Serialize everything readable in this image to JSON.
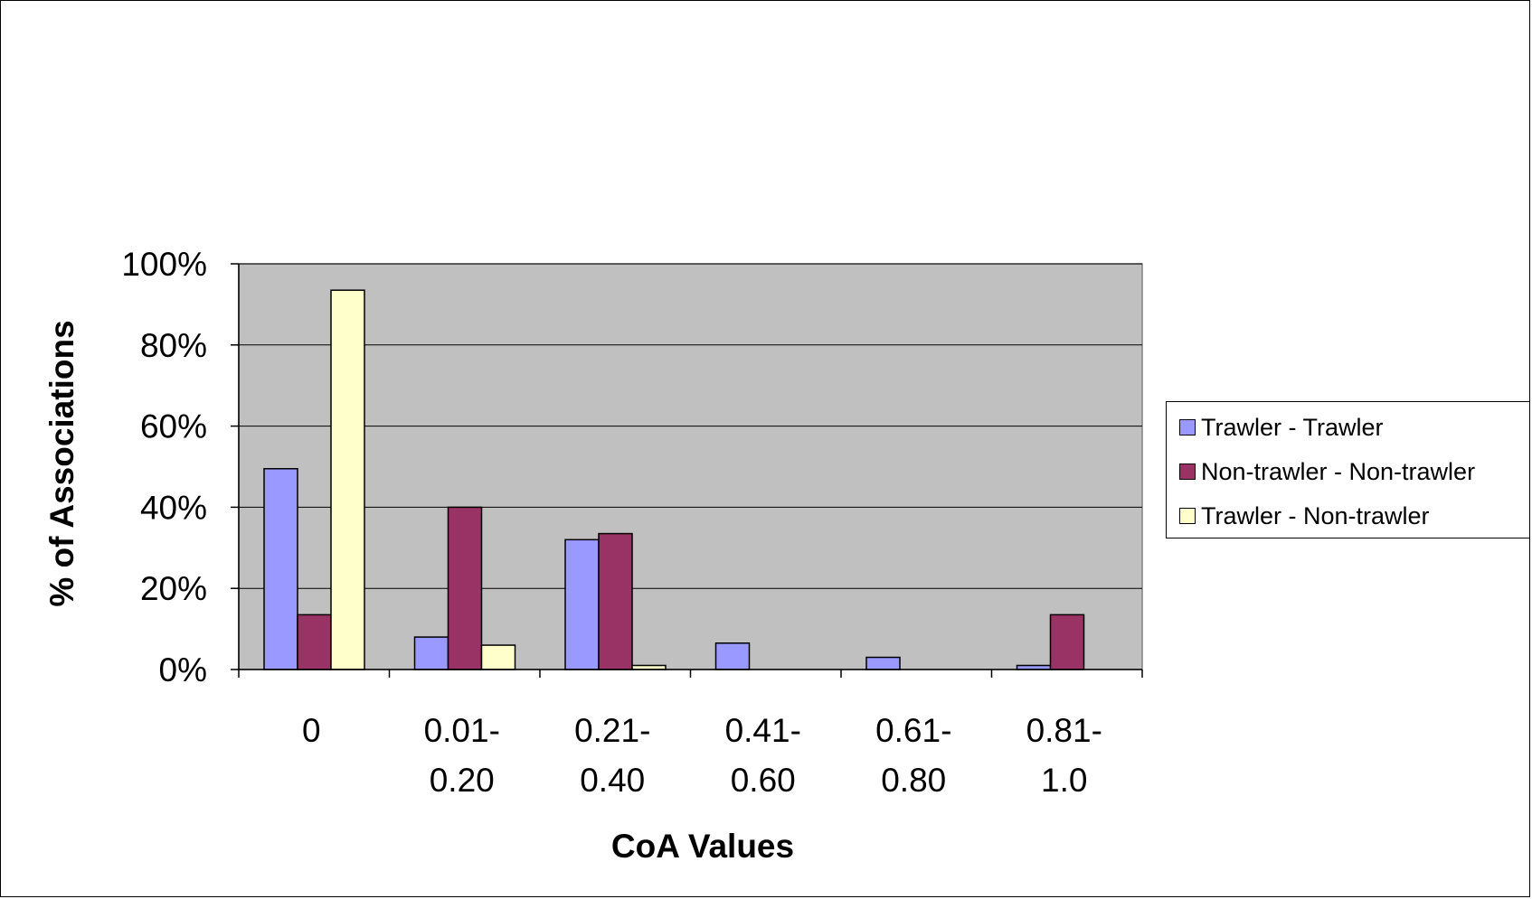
{
  "chart_data": {
    "type": "bar",
    "title": "",
    "xlabel": "CoA Values",
    "ylabel": "% of Associations",
    "ylim": [
      0,
      100
    ],
    "y_ticks": [
      "0%",
      "20%",
      "40%",
      "60%",
      "80%",
      "100%"
    ],
    "y_tick_values": [
      0,
      20,
      40,
      60,
      80,
      100
    ],
    "categories": [
      [
        "0"
      ],
      [
        "0.01-",
        "0.20"
      ],
      [
        "0.21-",
        "0.40"
      ],
      [
        "0.41-",
        "0.60"
      ],
      [
        "0.61-",
        "0.80"
      ],
      [
        "0.81-",
        "1.0"
      ]
    ],
    "series": [
      {
        "name": "Trawler - Trawler",
        "color": "#9999ff",
        "values": [
          49.5,
          8,
          32,
          6.5,
          3,
          1
        ]
      },
      {
        "name": "Non-trawler - Non-trawler",
        "color": "#993366",
        "values": [
          13.5,
          40,
          33.5,
          0,
          0,
          13.5
        ]
      },
      {
        "name": "Trawler - Non-trawler",
        "color": "#ffffcc",
        "values": [
          93.5,
          6,
          1,
          0,
          0,
          0
        ]
      }
    ],
    "plot_background": "#c0c0c0",
    "grid": true,
    "legend_position": "right"
  }
}
